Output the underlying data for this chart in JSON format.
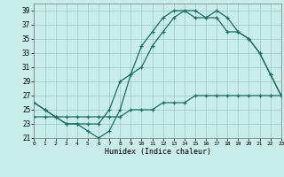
{
  "xlabel": "Humidex (Indice chaleur)",
  "bg_color": "#c8ecea",
  "line_color": "#1a6e64",
  "grid_color": "#a0ccca",
  "xlim": [
    0,
    23
  ],
  "ylim": [
    21,
    40
  ],
  "xticks": [
    0,
    1,
    2,
    3,
    4,
    5,
    6,
    7,
    8,
    9,
    10,
    11,
    12,
    13,
    14,
    15,
    16,
    17,
    18,
    19,
    20,
    21,
    22,
    23
  ],
  "yticks": [
    21,
    23,
    25,
    27,
    29,
    31,
    33,
    35,
    37,
    39
  ],
  "line1_x": [
    0,
    1,
    2,
    3,
    4,
    5,
    6,
    7,
    8,
    9,
    10,
    11,
    12,
    13,
    14,
    15,
    16,
    17,
    18,
    19,
    20,
    21,
    22,
    23
  ],
  "line1_y": [
    26,
    25,
    24,
    23,
    23,
    22,
    21,
    22,
    25,
    30,
    31,
    34,
    36,
    38,
    39,
    39,
    38,
    39,
    38,
    36,
    35,
    33,
    30,
    27
  ],
  "line2_x": [
    0,
    1,
    2,
    3,
    4,
    5,
    6,
    7,
    8,
    9,
    10,
    11,
    12,
    13,
    14,
    15,
    16,
    17,
    18,
    19,
    20,
    21,
    22,
    23
  ],
  "line2_y": [
    26,
    25,
    24,
    23,
    23,
    23,
    23,
    25,
    29,
    30,
    34,
    36,
    38,
    39,
    39,
    38,
    38,
    38,
    36,
    36,
    35,
    33,
    30,
    27
  ],
  "line3_x": [
    0,
    1,
    2,
    3,
    4,
    5,
    6,
    7,
    8,
    9,
    10,
    11,
    12,
    13,
    14,
    15,
    16,
    17,
    18,
    19,
    20,
    21,
    22,
    23
  ],
  "line3_y": [
    24,
    24,
    24,
    24,
    24,
    24,
    24,
    24,
    24,
    25,
    25,
    25,
    26,
    26,
    26,
    27,
    27,
    27,
    27,
    27,
    27,
    27,
    27,
    27
  ]
}
